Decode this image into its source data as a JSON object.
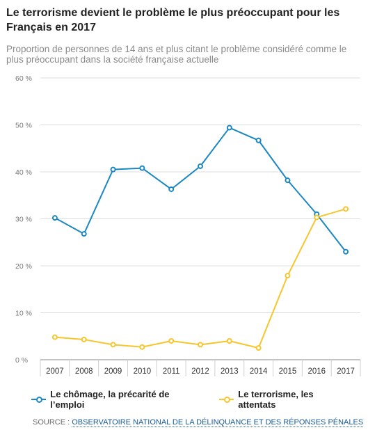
{
  "title": "Le terrorisme devient le problème le plus préoccupant pour les Français en 2017",
  "subtitle": "Proportion de personnes de 14 ans et plus citant le problème considéré comme le plus préoccupant dans la société française actuelle",
  "source": {
    "label": "SOURCE :",
    "text": "OBSERVATOIRE NATIONAL DE LA DÉLINQUANCE ET DES RÉPONSES PÉNALES"
  },
  "chart_data": {
    "type": "line",
    "title": "Le terrorisme devient le problème le plus préoccupant pour les Français en 2017",
    "subtitle": "Proportion de personnes de 14 ans et plus citant le problème considéré comme le plus préoccupant dans la société française actuelle",
    "categories": [
      "2007",
      "2008",
      "2009",
      "2010",
      "2011",
      "2012",
      "2013",
      "2014",
      "2015",
      "2016",
      "2017"
    ],
    "ylim": [
      0,
      60
    ],
    "yticks": [
      "0 %",
      "10 %",
      "20 %",
      "30 %",
      "40 %",
      "50 %",
      "60 %"
    ],
    "grid": true,
    "legend_position": "bottom",
    "series": [
      {
        "name": "Le chômage, la précarité de l’emploi",
        "color": "#1a87c2",
        "values": [
          30.2,
          26.8,
          40.5,
          40.8,
          36.3,
          41.2,
          49.4,
          46.7,
          38.2,
          31.0,
          23.0
        ]
      },
      {
        "name": "Le terrorisme, les attentats",
        "color": "#f7c52c",
        "values": [
          4.8,
          4.3,
          3.2,
          2.7,
          4.0,
          3.2,
          4.0,
          2.5,
          17.9,
          30.3,
          32.1
        ]
      }
    ]
  }
}
